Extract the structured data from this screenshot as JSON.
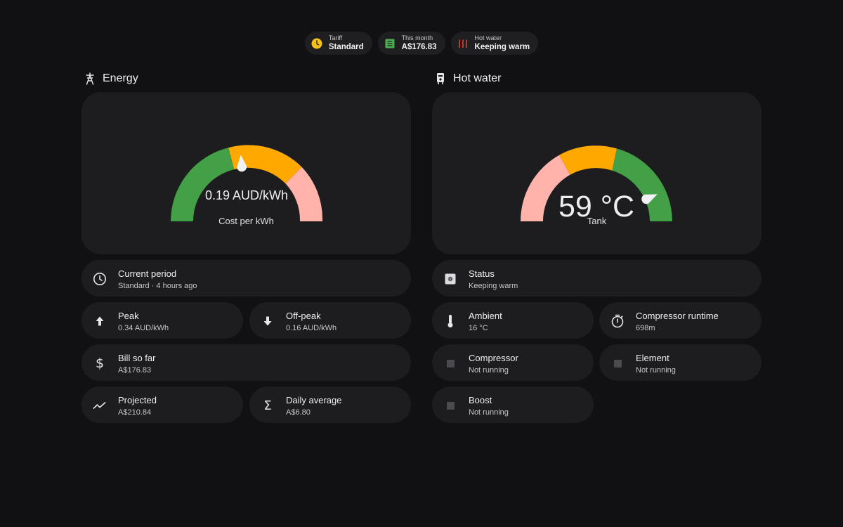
{
  "chips": [
    {
      "label": "Tariff",
      "value": "Standard",
      "icon": "clock-icon",
      "color": "#f5c11a"
    },
    {
      "label": "This month",
      "value": "A$176.83",
      "icon": "receipt-icon",
      "color": "#4caf50"
    },
    {
      "label": "Hot water",
      "value": "Keeping warm",
      "icon": "heat-waves-icon",
      "color": "#e84a3a"
    }
  ],
  "energy": {
    "title": "Energy",
    "gauge": {
      "value_text": "0.19 AUD/kWh",
      "label": "Cost per kWh",
      "value_fraction": 0.47
    },
    "current_period": {
      "name": "Current period",
      "value": "Standard · 4 hours ago"
    },
    "peak": {
      "name": "Peak",
      "value": "0.34 AUD/kWh"
    },
    "offpeak": {
      "name": "Off-peak",
      "value": "0.16 AUD/kWh"
    },
    "bill": {
      "name": "Bill so far",
      "value": "A$176.83"
    },
    "projected": {
      "name": "Projected",
      "value": "A$210.84"
    },
    "daily": {
      "name": "Daily average",
      "value": "A$6.80"
    }
  },
  "hotwater": {
    "title": "Hot water",
    "gauge": {
      "value_text": "59 °C",
      "label": "Tank",
      "value_fraction": 0.87
    },
    "status": {
      "name": "Status",
      "value": "Keeping warm"
    },
    "ambient": {
      "name": "Ambient",
      "value": "16 °C"
    },
    "runtime": {
      "name": "Compressor runtime",
      "value": "698m"
    },
    "compressor": {
      "name": "Compressor",
      "value": "Not running"
    },
    "element": {
      "name": "Element",
      "value": "Not running"
    },
    "boost": {
      "name": "Boost",
      "value": "Not running"
    }
  },
  "colors": {
    "green": "#43a047",
    "amber": "#ffa800",
    "pink": "#ffb3ab"
  }
}
